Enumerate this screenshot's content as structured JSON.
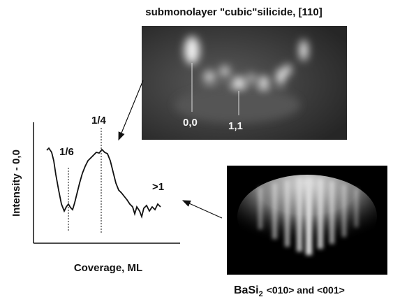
{
  "figure": {
    "top_image": {
      "title": "submonolayer \"cubic\"silicide, [110]",
      "spot_labels": [
        "0,0",
        "1,1"
      ]
    },
    "plot": {
      "y_label": "Intensity - 0,0",
      "x_label": "Coverage, ML",
      "annotations": [
        "1/6",
        "1/4",
        ">1"
      ]
    },
    "bottom_image": {
      "caption": {
        "compound": "BaSi",
        "subscript": "2",
        "directions": "<010> and <001>"
      }
    }
  }
}
